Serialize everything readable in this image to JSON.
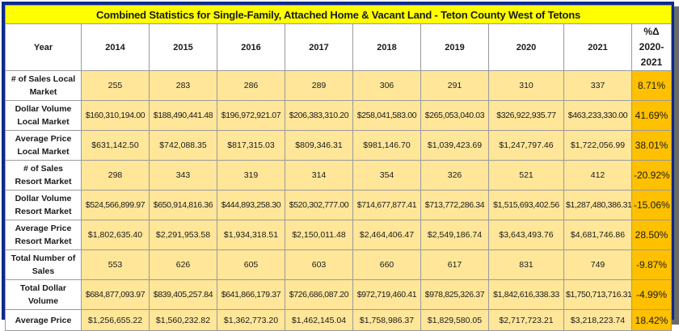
{
  "title": "Combined Statistics for Single-Family, Attached Home & Vacant Land - Teton County West of Tetons",
  "header": {
    "year_label": "Year",
    "years": [
      "2014",
      "2015",
      "2016",
      "2017",
      "2018",
      "2019",
      "2020",
      "2021"
    ],
    "pct_label_line1": "%Δ 2020-",
    "pct_label_line2": "2021"
  },
  "rows": [
    {
      "label_line1": "# of Sales Local",
      "label_line2": "Market",
      "values": [
        "255",
        "283",
        "286",
        "289",
        "306",
        "291",
        "310",
        "337"
      ],
      "pct": "8.71%"
    },
    {
      "label_line1": "Dollar Volume",
      "label_line2": "Local Market",
      "values": [
        "$160,310,194.00",
        "$188,490,441.48",
        "$196,972,921.07",
        "$206,383,310.20",
        "$258,041,583.00",
        "$265,053,040.03",
        "$326,922,935.77",
        "$463,233,330.00"
      ],
      "pct": "41.69%"
    },
    {
      "label_line1": "Average Price",
      "label_line2": "Local Market",
      "values": [
        "$631,142.50",
        "$742,088.35",
        "$817,315.03",
        "$809,346.31",
        "$981,146.70",
        "$1,039,423.69",
        "$1,247,797.46",
        "$1,722,056.99"
      ],
      "pct": "38.01%"
    },
    {
      "label_line1": "# of Sales",
      "label_line2": "Resort Market",
      "values": [
        "298",
        "343",
        "319",
        "314",
        "354",
        "326",
        "521",
        "412"
      ],
      "pct": "-20.92%"
    },
    {
      "label_line1": "Dollar Volume",
      "label_line2": "Resort Market",
      "values": [
        "$524,566,899.97",
        "$650,914,816.36",
        "$444,893,258.30",
        "$520,302,777.00",
        "$714,677,877.41",
        "$713,772,286.34",
        "$1,515,693,402.56",
        "$1,287,480,386.31"
      ],
      "pct": "-15.06%"
    },
    {
      "label_line1": "Average Price",
      "label_line2": "Resort Market",
      "values": [
        "$1,802,635.40",
        "$2,291,953.58",
        "$1,934,318.51",
        "$2,150,011.48",
        "$2,464,406.47",
        "$2,549,186.74",
        "$3,643,493.76",
        "$4,681,746.86"
      ],
      "pct": "28.50%"
    },
    {
      "label_line1": "Total Number of",
      "label_line2": "Sales",
      "values": [
        "553",
        "626",
        "605",
        "603",
        "660",
        "617",
        "831",
        "749"
      ],
      "pct": "-9.87%"
    },
    {
      "label_line1": "Total Dollar",
      "label_line2": "Volume",
      "values": [
        "$684,877,093.97",
        "$839,405,257.84",
        "$641,866,179.37",
        "$726,686,087.20",
        "$972,719,460.41",
        "$978,825,326.37",
        "$1,842,616,338.33",
        "$1,750,713,716.31"
      ],
      "pct": "-4.99%"
    },
    {
      "label_line1": "Average Price",
      "label_line2": "",
      "values": [
        "$1,256,655.22",
        "$1,560,232.82",
        "$1,362,773.20",
        "$1,462,145.04",
        "$1,758,986.37",
        "$1,829,580.05",
        "$2,717,723.21",
        "$3,218,223.74"
      ],
      "pct": "18.42%"
    }
  ]
}
